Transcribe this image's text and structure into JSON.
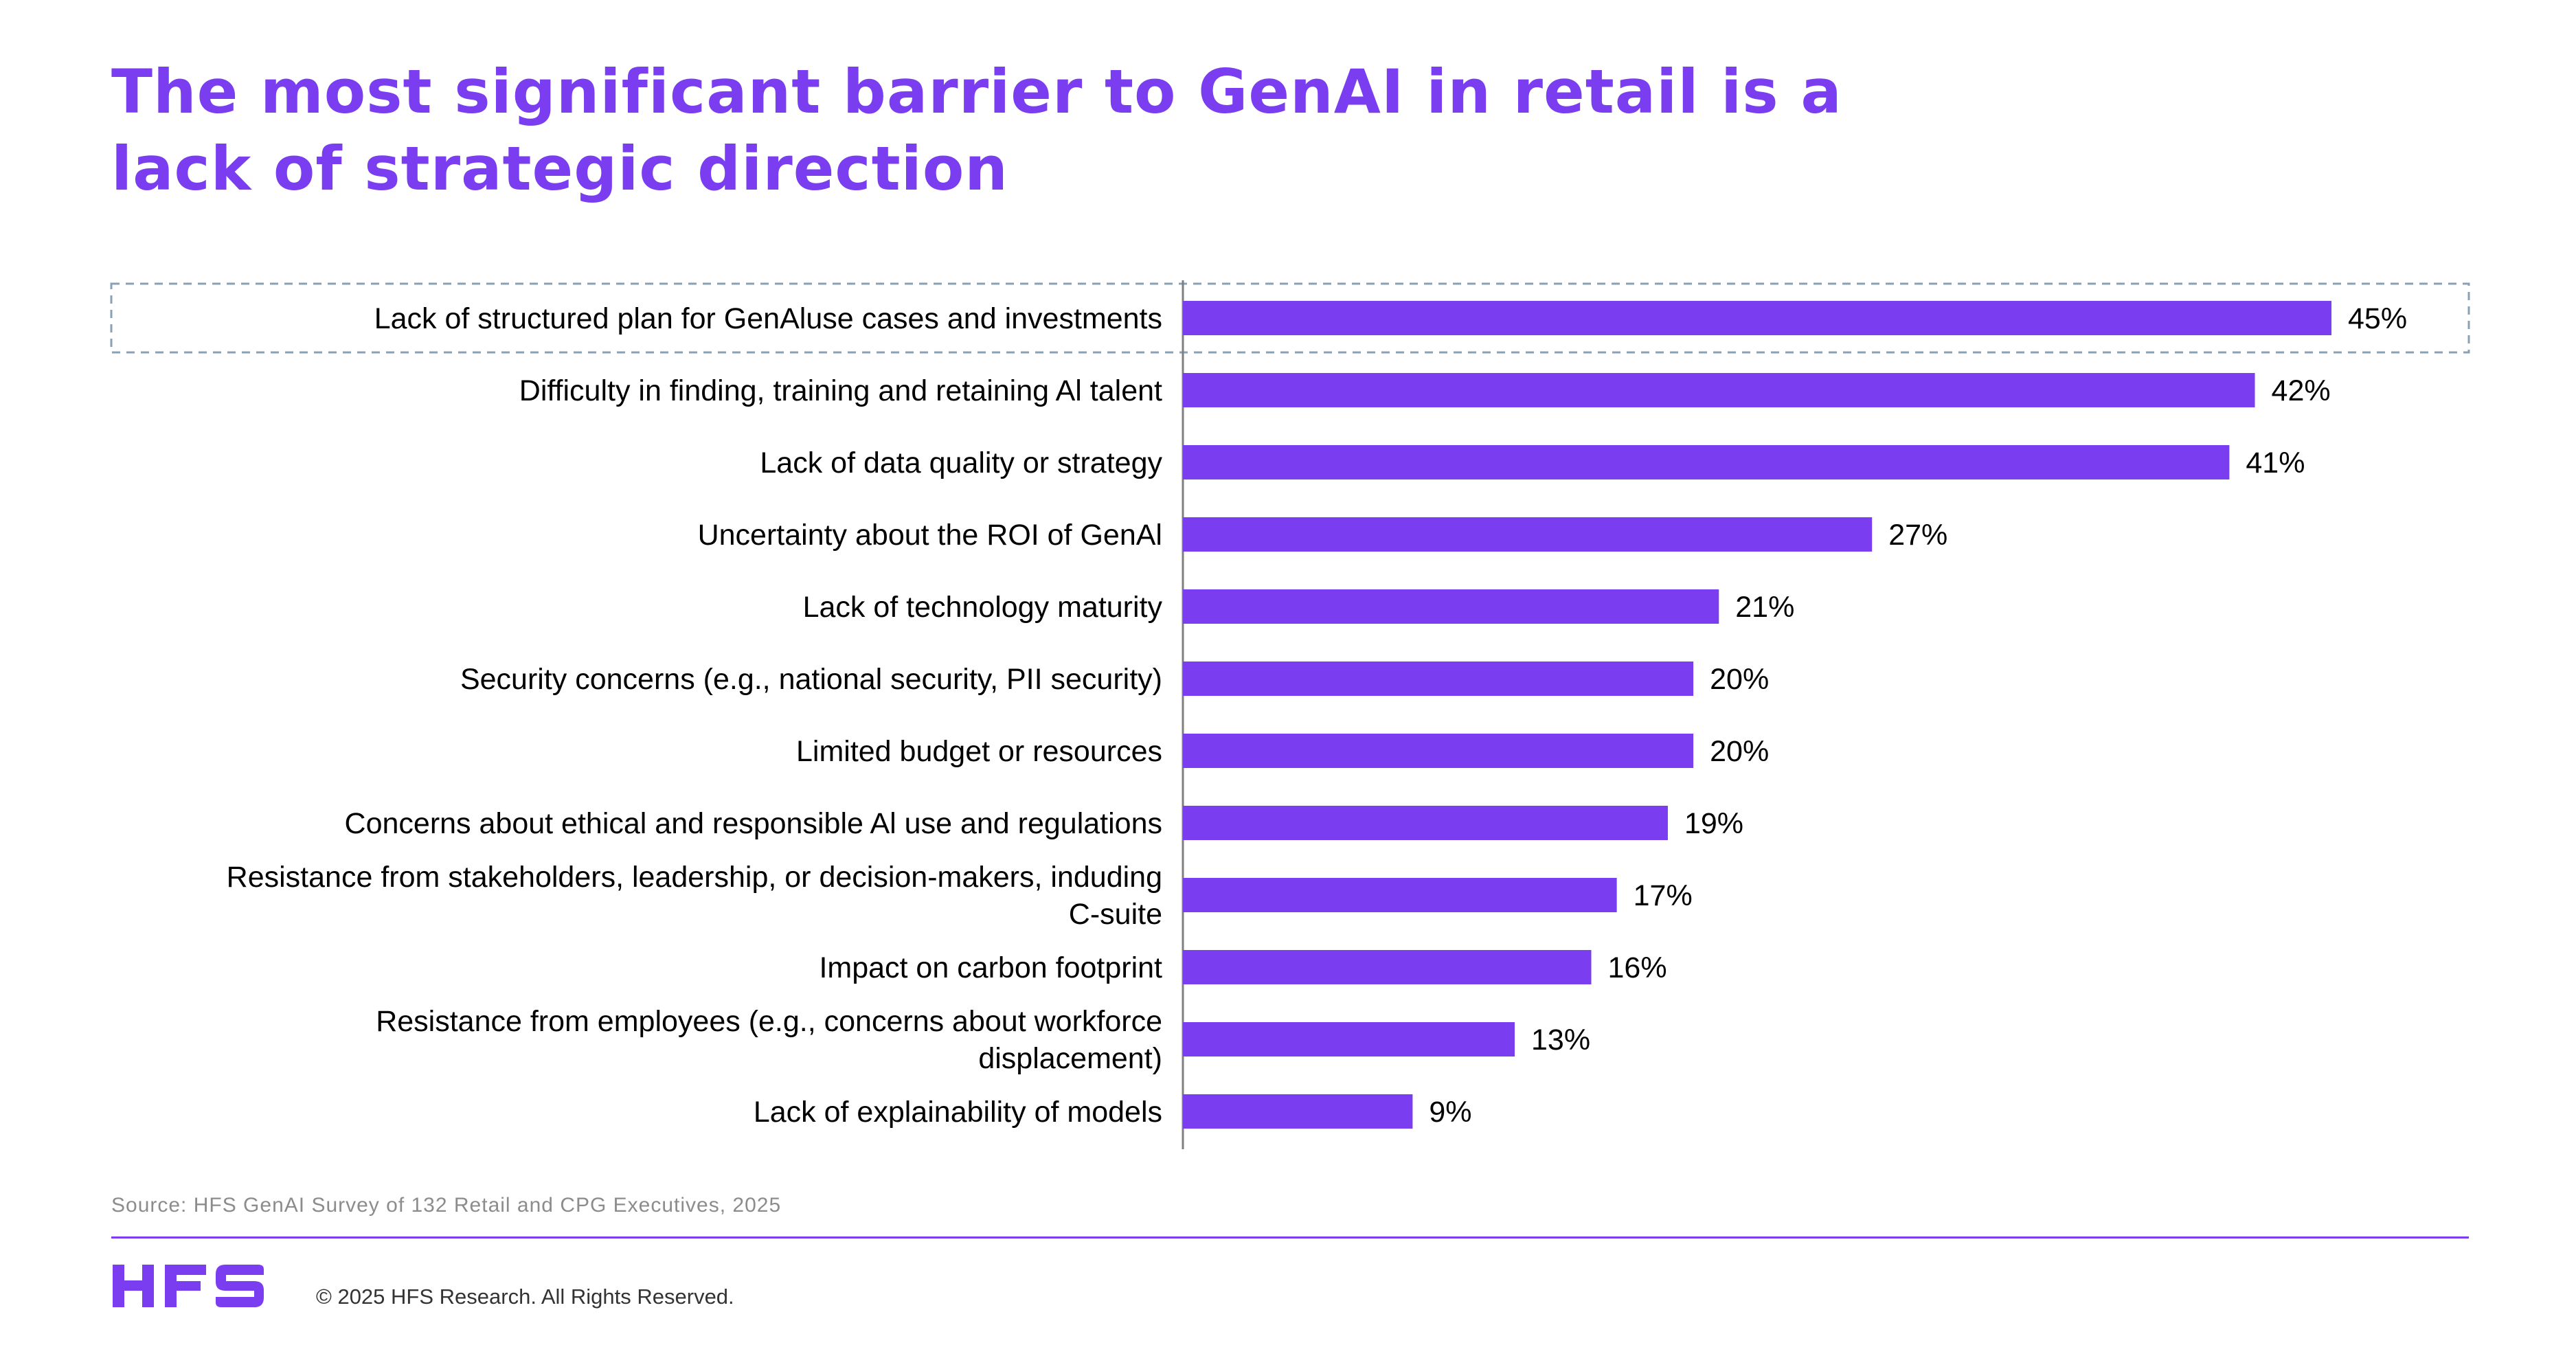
{
  "title_lines": [
    "The most significant barrier to GenAI in retail is a",
    "lack of strategic direction"
  ],
  "colors": {
    "accent": "#7a3df0",
    "highlight_border": "#8aa0b4"
  },
  "chart_data": {
    "type": "bar",
    "orientation": "horizontal",
    "categories": [
      "Lack of structured plan for GenAluse cases and investments",
      "Difficulty in finding, training and retaining Al talent",
      "Lack of data quality or strategy",
      "Uncertainty about the ROI of GenAl",
      "Lack of technology maturity",
      "Security concerns (e.g., national security, PII security)",
      "Limited budget or resources",
      "Concerns about ethical and responsible Al use and regulations",
      "Resistance from stakeholders, leadership, or decision-makers, induding C-suite",
      "Impact on carbon footprint",
      "Resistance from employees (e.g., concerns about workforce displacement)",
      "Lack of explainability of models"
    ],
    "category_lines": [
      [
        "Lack of structured plan for GenAluse cases and investments"
      ],
      [
        "Difficulty in finding, training and retaining Al talent"
      ],
      [
        "Lack of data quality or strategy"
      ],
      [
        "Uncertainty about the ROI of GenAl"
      ],
      [
        "Lack of technology maturity"
      ],
      [
        "Security concerns (e.g., national security, PII security)"
      ],
      [
        "Limited budget or resources"
      ],
      [
        "Concerns about ethical and responsible Al use and regulations"
      ],
      [
        "Resistance from stakeholders, leadership, or decision-makers, induding",
        "C-suite"
      ],
      [
        "Impact on carbon footprint"
      ],
      [
        "Resistance from employees (e.g., concerns about workforce",
        "displacement)"
      ],
      [
        "Lack of explainability of models"
      ]
    ],
    "values": [
      45,
      42,
      41,
      27,
      21,
      20,
      20,
      19,
      17,
      16,
      13,
      9
    ],
    "value_labels": [
      "45%",
      "42%",
      "41%",
      "27%",
      "21%",
      "20%",
      "20%",
      "19%",
      "17%",
      "16%",
      "13%",
      "9%"
    ],
    "unit": "%",
    "xlim": [
      0,
      45
    ],
    "highlighted_index": 0,
    "grid": false,
    "legend": "none"
  },
  "source": "Source: HFS GenAI Survey of 132 Retail and CPG Executives, 2025",
  "footer": {
    "logo_text": "HFS",
    "copyright": "© 2025 HFS Research. All Rights Reserved."
  }
}
